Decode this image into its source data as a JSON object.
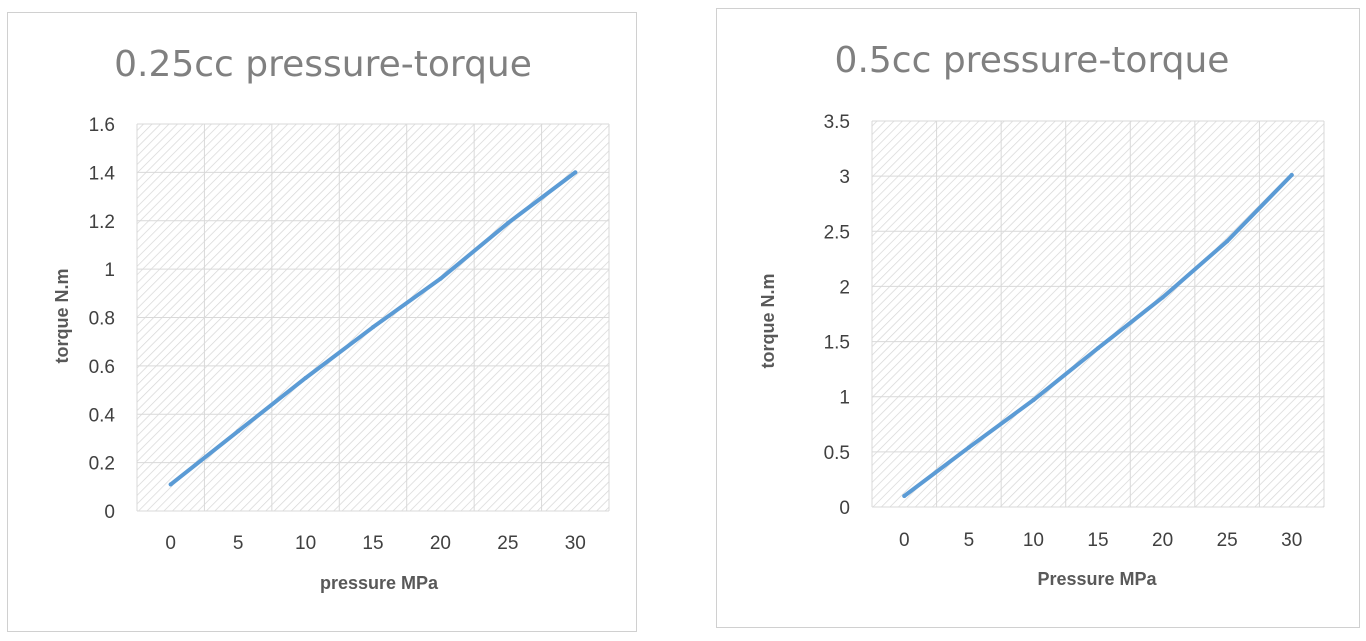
{
  "chart_data": [
    {
      "type": "line",
      "title": "0.25cc pressure-torque",
      "xlabel": "pressure MPa",
      "ylabel": "torque  N.m",
      "categories": [
        "0",
        "5",
        "10",
        "15",
        "20",
        "25",
        "30"
      ],
      "yticks": [
        "0",
        "0.2",
        "0.4",
        "0.6",
        "0.8",
        "1",
        "1.2",
        "1.4",
        "1.6"
      ],
      "ylim": [
        0,
        1.6
      ],
      "grid": true,
      "background": "diagonal hatch",
      "series": [
        {
          "values": [
            0.11,
            0.33,
            0.55,
            0.76,
            0.96,
            1.19,
            1.4
          ],
          "color": "#5b9bd5"
        }
      ]
    },
    {
      "type": "line",
      "title": "0.5cc pressure-torque",
      "xlabel": "Pressure MPa",
      "ylabel": "torque N.m",
      "categories": [
        "0",
        "5",
        "10",
        "15",
        "20",
        "25",
        "30"
      ],
      "yticks": [
        "0",
        "0.5",
        "1",
        "1.5",
        "2",
        "2.5",
        "3",
        "3.5"
      ],
      "ylim": [
        0,
        3.5
      ],
      "grid": true,
      "background": "diagonal hatch",
      "series": [
        {
          "values": [
            0.1,
            0.54,
            0.97,
            1.44,
            1.9,
            2.41,
            3.01
          ],
          "color": "#5b9bd5"
        }
      ]
    }
  ]
}
